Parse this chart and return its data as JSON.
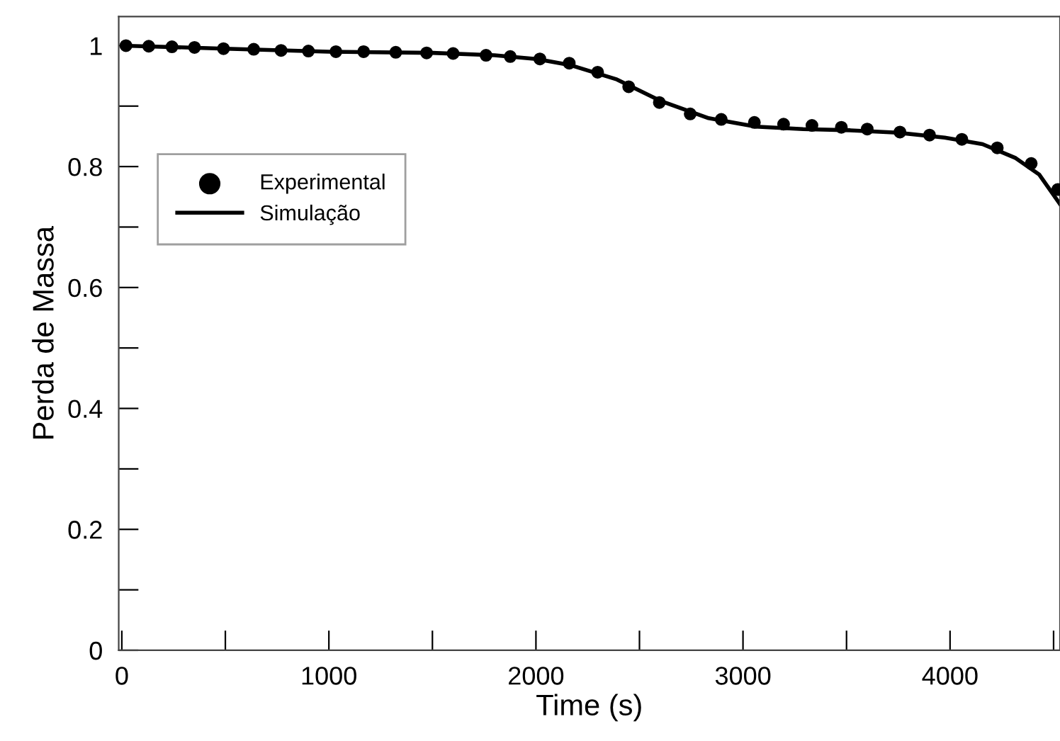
{
  "chart_data": {
    "type": "scatter",
    "xlabel": "Time (s)",
    "ylabel": "Perda de Massa",
    "xlim": [
      -15,
      4531
    ],
    "ylim": [
      0,
      1.048
    ],
    "xticks": [
      0,
      {
        "value": 500,
        "label": null
      },
      1000,
      {
        "value": 1500,
        "label": null
      },
      2000,
      {
        "value": 2500,
        "label": null
      },
      3000,
      {
        "value": 3500,
        "label": null
      },
      4000,
      {
        "value": 4500,
        "label": null
      }
    ],
    "yticks": [
      0,
      {
        "value": 0.1,
        "label": null
      },
      0.2,
      {
        "value": 0.3,
        "label": null
      },
      0.4,
      {
        "value": 0.5,
        "label": null
      },
      0.6,
      {
        "value": 0.7,
        "label": null
      },
      0.8,
      {
        "value": 0.9,
        "label": null
      },
      1
    ],
    "grid": false,
    "legend": "left",
    "series": [
      {
        "name": "Experimental",
        "marker": "circle",
        "color": "#000000",
        "x": [
          20,
          130,
          242,
          351,
          491,
          637,
          769,
          901,
          1034,
          1168,
          1323,
          1472,
          1600,
          1759,
          1876,
          2019,
          2161,
          2298,
          2448,
          2596,
          2745,
          2895,
          3055,
          3196,
          3333,
          3475,
          3600,
          3758,
          3901,
          4057,
          4228,
          4392,
          4520
        ],
        "values": [
          1.0,
          0.999,
          0.998,
          0.997,
          0.995,
          0.994,
          0.992,
          0.991,
          0.99,
          0.99,
          0.989,
          0.988,
          0.987,
          0.984,
          0.982,
          0.978,
          0.971,
          0.956,
          0.932,
          0.906,
          0.887,
          0.878,
          0.873,
          0.87,
          0.868,
          0.865,
          0.862,
          0.857,
          0.852,
          0.845,
          0.831,
          0.805,
          0.762
        ]
      },
      {
        "name": "Simulação",
        "type": "line",
        "marker": "none",
        "line_style": "solid",
        "color": "#000000",
        "x": [
          0,
          500,
          1000,
          1500,
          1800,
          2000,
          2163,
          2391,
          2606,
          2834,
          3062,
          3290,
          3518,
          3746,
          3974,
          4157,
          4317,
          4430,
          4531
        ],
        "values": [
          1.0,
          0.995,
          0.99,
          0.988,
          0.984,
          0.978,
          0.968,
          0.944,
          0.908,
          0.88,
          0.866,
          0.862,
          0.86,
          0.856,
          0.848,
          0.837,
          0.814,
          0.787,
          0.738
        ]
      }
    ]
  }
}
